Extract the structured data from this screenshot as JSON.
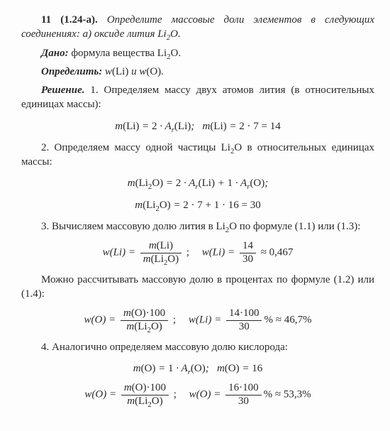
{
  "title_line": "11 (1.24-а). Определите массовые доли элементов в следующих соединениях: а) оксиде лития Li₂O.",
  "dano_label": "Дано:",
  "dano_text": " формула вещества Li₂O.",
  "opredelit_label": "Определить:",
  "opredelit_text": " w(Li) и w(O).",
  "reshenie_label": "Решение.",
  "step1_text": " 1. Определяем массу двух атомов лития (в относительных единицах массы):",
  "eq1": "m(Li) = 2 · Aᵣ(Li);  m(Li) = 2 · 7 = 14",
  "step2_text": "2. Определяем массу одной частицы Li₂O в относительных единицах массы:",
  "eq2a": "m(Li₂O) = 2 · Aᵣ(Li) + 1 · Aᵣ(O);",
  "eq2b": "m(Li₂O) = 2 · 7 + 1 · 16 = 30",
  "step3_text": "3. Вычисляем массовую долю лития в Li₂O по формуле (1.1) или (1.3):",
  "eq3": {
    "lhs1": "w(Li) =",
    "num1": "m(Li)",
    "den1": "m(Li₂O)",
    "sep": ";",
    "lhs2": "w(Li) =",
    "num2": "14",
    "den2": "30",
    "tail": " ≈ 0,467"
  },
  "mid_text": "Можно рассчитывать массовую долю в процентах по формуле (1.2) или (1.4):",
  "eq4": {
    "lhs1": "w(O) =",
    "num1": "m(O)·100",
    "den1": "m(Li₂O)",
    "sep": ";",
    "lhs2": "w(Li) =",
    "num2": "14·100",
    "den2": "30",
    "tail": "% ≈ 46,7%"
  },
  "step4_text": "4. Аналогично определяем массовую долю кислорода:",
  "eq5": "m(O) = 1 · Aᵣ(O);  m(O) = 16",
  "eq6": {
    "lhs1": "w(O) =",
    "num1": "m(O)·100",
    "den1": "m(Li₂O)",
    "sep": ";",
    "lhs2": "w(O) =",
    "num2": "16·100",
    "den2": "30",
    "tail": "% ≈ 53,3%"
  }
}
